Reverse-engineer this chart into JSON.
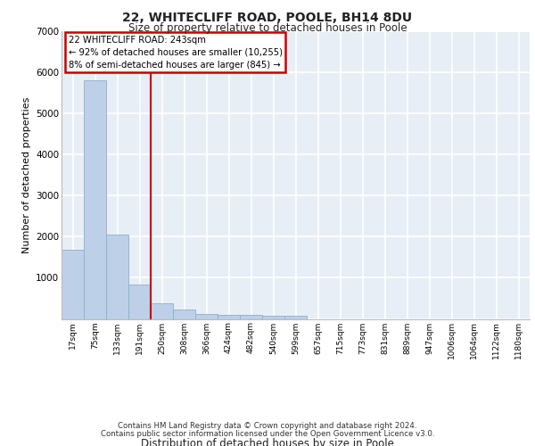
{
  "title_line1": "22, WHITECLIFF ROAD, POOLE, BH14 8DU",
  "title_line2": "Size of property relative to detached houses in Poole",
  "xlabel": "Distribution of detached houses by size in Poole",
  "ylabel": "Number of detached properties",
  "bar_color": "#bdd0e8",
  "bar_edge_color": "#8ab0d0",
  "bin_labels": [
    "17sqm",
    "75sqm",
    "133sqm",
    "191sqm",
    "250sqm",
    "308sqm",
    "366sqm",
    "424sqm",
    "482sqm",
    "540sqm",
    "599sqm",
    "657sqm",
    "715sqm",
    "773sqm",
    "831sqm",
    "889sqm",
    "947sqm",
    "1006sqm",
    "1064sqm",
    "1122sqm",
    "1180sqm"
  ],
  "bar_heights": [
    1680,
    5800,
    2060,
    830,
    380,
    220,
    130,
    105,
    95,
    85,
    75,
    0,
    0,
    0,
    0,
    0,
    0,
    0,
    0,
    0,
    0
  ],
  "annotation_text": "22 WHITECLIFF ROAD: 243sqm\n← 92% of detached houses are smaller (10,255)\n8% of semi-detached houses are larger (845) →",
  "vline_x": 4.0,
  "vline_color": "#cc0000",
  "annotation_box_color": "#cc0000",
  "ylim": [
    0,
    7000
  ],
  "yticks": [
    0,
    1000,
    2000,
    3000,
    4000,
    5000,
    6000,
    7000
  ],
  "footer_line1": "Contains HM Land Registry data © Crown copyright and database right 2024.",
  "footer_line2": "Contains public sector information licensed under the Open Government Licence v3.0.",
  "background_color": "#e8eef5",
  "grid_color": "#ffffff",
  "fig_bg_color": "#ffffff"
}
